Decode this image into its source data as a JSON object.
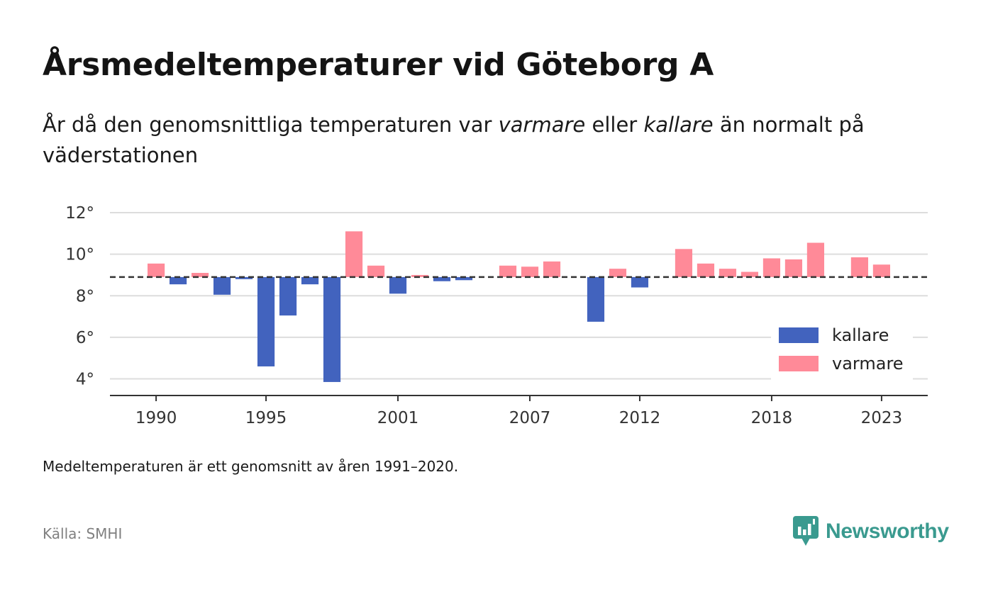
{
  "title": "Årsmedeltemperaturer vid Göteborg A",
  "subtitle": {
    "part1": "År då den genomsnittliga temperaturen var ",
    "warmer_word": "varmare",
    "part2": " eller ",
    "colder_word": "kallare",
    "part3": " än normalt på väderstationen"
  },
  "note": "Medeltemperaturen är ett genomsnitt av åren 1991–2020.",
  "source": "Källa: SMHI",
  "logo": {
    "text": "Newsworthy",
    "icon": "newsworthy-chart-bubble-icon"
  },
  "colors": {
    "colder": "#4263be",
    "warmer": "#ff8a98",
    "grid": "#dddddd",
    "baseline": "#333333"
  },
  "chart_data": {
    "type": "bar",
    "baseline": 8.9,
    "baseline_style": "dashed",
    "ylim": [
      3.2,
      12
    ],
    "yticks": [
      4,
      6,
      8,
      10,
      12
    ],
    "ytick_labels": [
      "4°",
      "6°",
      "8°",
      "10°",
      "12°"
    ],
    "xlim": [
      1987.9,
      2025.1
    ],
    "xticks": [
      1990,
      1995,
      2001,
      2007,
      2012,
      2018,
      2023
    ],
    "xtick_labels": [
      "1990",
      "1995",
      "2001",
      "2007",
      "2012",
      "2018",
      "2023"
    ],
    "grid": true,
    "legend_position": "bottom-right",
    "legend": [
      {
        "label": "kallare",
        "color_key": "colder"
      },
      {
        "label": "varmare",
        "color_key": "warmer"
      }
    ],
    "points": [
      {
        "year": 1990,
        "value": 9.55
      },
      {
        "year": 1991,
        "value": 8.55
      },
      {
        "year": 1992,
        "value": 9.1
      },
      {
        "year": 1993,
        "value": 8.05
      },
      {
        "year": 1994,
        "value": 8.8
      },
      {
        "year": 1995,
        "value": 4.6
      },
      {
        "year": 1996,
        "value": 7.05
      },
      {
        "year": 1997,
        "value": 8.55
      },
      {
        "year": 1998,
        "value": 3.85
      },
      {
        "year": 1999,
        "value": 11.1
      },
      {
        "year": 2000,
        "value": 9.45
      },
      {
        "year": 2001,
        "value": 8.1
      },
      {
        "year": 2002,
        "value": 9.0
      },
      {
        "year": 2003,
        "value": 8.7
      },
      {
        "year": 2004,
        "value": 8.75
      },
      {
        "year": 2006,
        "value": 9.45
      },
      {
        "year": 2007,
        "value": 9.4
      },
      {
        "year": 2008,
        "value": 9.65
      },
      {
        "year": 2010,
        "value": 6.75
      },
      {
        "year": 2011,
        "value": 9.3
      },
      {
        "year": 2012,
        "value": 8.4
      },
      {
        "year": 2014,
        "value": 10.25
      },
      {
        "year": 2015,
        "value": 9.55
      },
      {
        "year": 2016,
        "value": 9.3
      },
      {
        "year": 2017,
        "value": 9.15
      },
      {
        "year": 2018,
        "value": 9.8
      },
      {
        "year": 2019,
        "value": 9.75
      },
      {
        "year": 2020,
        "value": 10.55
      },
      {
        "year": 2022,
        "value": 9.85
      },
      {
        "year": 2023,
        "value": 9.5
      }
    ]
  }
}
